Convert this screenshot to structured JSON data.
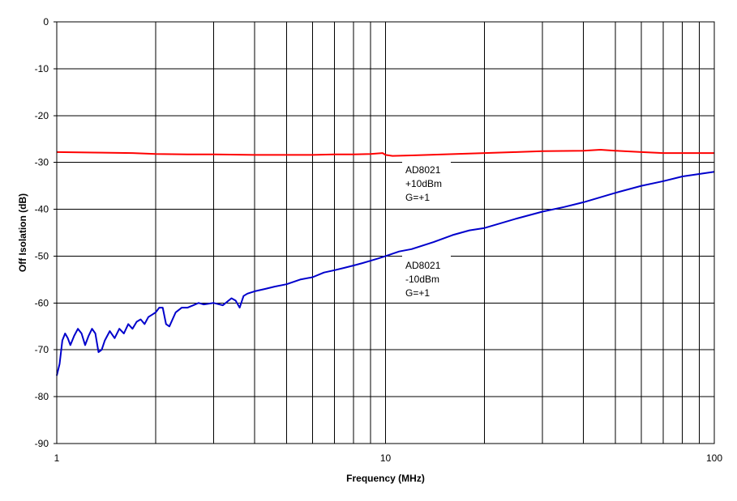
{
  "chart_data": {
    "type": "line",
    "title": "",
    "xlabel": "Frequency (MHz)",
    "ylabel": "Off Isolation (dB)",
    "x_scale": "log",
    "xlim": [
      1,
      100
    ],
    "ylim": [
      -90,
      0
    ],
    "x_tick_labels": [
      "1",
      "10",
      "100"
    ],
    "y_ticks": [
      0,
      -10,
      -20,
      -30,
      -40,
      -50,
      -60,
      -70,
      -80,
      -90
    ],
    "y_tick_labels": [
      "0",
      "-10",
      "-20",
      "-30",
      "-40",
      "-50",
      "-60",
      "-70",
      "-80",
      "-90"
    ],
    "grid": true,
    "colors": {
      "series1": "#ff0000",
      "series2": "#0000cc",
      "grid": "#000000"
    },
    "annotations": [
      {
        "id": "red",
        "lines": [
          "AD8021",
          "+10dBm",
          "G=+1"
        ]
      },
      {
        "id": "blue",
        "lines": [
          "AD8021",
          "-10dBm",
          "G=+1"
        ]
      }
    ],
    "series": [
      {
        "color": "#ff0000",
        "x": [
          1,
          1.3,
          1.7,
          2,
          2.5,
          3,
          4,
          5,
          6,
          7,
          8,
          9,
          9.8,
          10,
          10.5,
          12,
          15,
          20,
          25,
          30,
          40,
          45,
          50,
          60,
          70,
          80,
          100
        ],
        "y": [
          -27.8,
          -27.9,
          -28.0,
          -28.2,
          -28.3,
          -28.3,
          -28.4,
          -28.4,
          -28.4,
          -28.3,
          -28.3,
          -28.2,
          -28.0,
          -28.4,
          -28.6,
          -28.5,
          -28.3,
          -28.0,
          -27.8,
          -27.6,
          -27.5,
          -27.3,
          -27.5,
          -27.8,
          -28.0,
          -28.0,
          -28.0
        ]
      },
      {
        "color": "#0000cc",
        "x": [
          1,
          1.02,
          1.04,
          1.06,
          1.08,
          1.1,
          1.13,
          1.16,
          1.19,
          1.22,
          1.25,
          1.28,
          1.31,
          1.34,
          1.37,
          1.4,
          1.45,
          1.5,
          1.55,
          1.6,
          1.65,
          1.7,
          1.75,
          1.8,
          1.85,
          1.9,
          1.95,
          2.0,
          2.05,
          2.1,
          2.15,
          2.2,
          2.3,
          2.4,
          2.5,
          2.6,
          2.7,
          2.8,
          3.0,
          3.2,
          3.4,
          3.5,
          3.6,
          3.7,
          3.8,
          4.0,
          4.3,
          4.6,
          5.0,
          5.5,
          6.0,
          6.5,
          7.0,
          7.5,
          8.0,
          8.5,
          9.0,
          9.5,
          10,
          11,
          12,
          14,
          16,
          18,
          20,
          25,
          30,
          35,
          40,
          50,
          60,
          70,
          80,
          100
        ],
        "y": [
          -75.5,
          -73.0,
          -68.0,
          -66.5,
          -67.5,
          -69.0,
          -67.0,
          -65.5,
          -66.5,
          -69.0,
          -67.0,
          -65.5,
          -66.5,
          -70.5,
          -70.0,
          -68.0,
          -66.0,
          -67.5,
          -65.5,
          -66.5,
          -64.5,
          -65.5,
          -64.0,
          -63.5,
          -64.5,
          -63.0,
          -62.5,
          -62.0,
          -61.0,
          -61.0,
          -64.5,
          -65.0,
          -62.0,
          -61.0,
          -61.0,
          -60.5,
          -60.0,
          -60.3,
          -60.0,
          -60.5,
          -59.0,
          -59.5,
          -61.0,
          -58.5,
          -58.0,
          -57.5,
          -57.0,
          -56.5,
          -56.0,
          -55.0,
          -54.5,
          -53.5,
          -53.0,
          -52.5,
          -52.0,
          -51.5,
          -51.0,
          -50.5,
          -50.0,
          -49.0,
          -48.5,
          -47.0,
          -45.5,
          -44.5,
          -44.0,
          -42.0,
          -40.5,
          -39.5,
          -38.5,
          -36.5,
          -35.0,
          -34.0,
          -33.0,
          -32.0
        ]
      }
    ]
  }
}
